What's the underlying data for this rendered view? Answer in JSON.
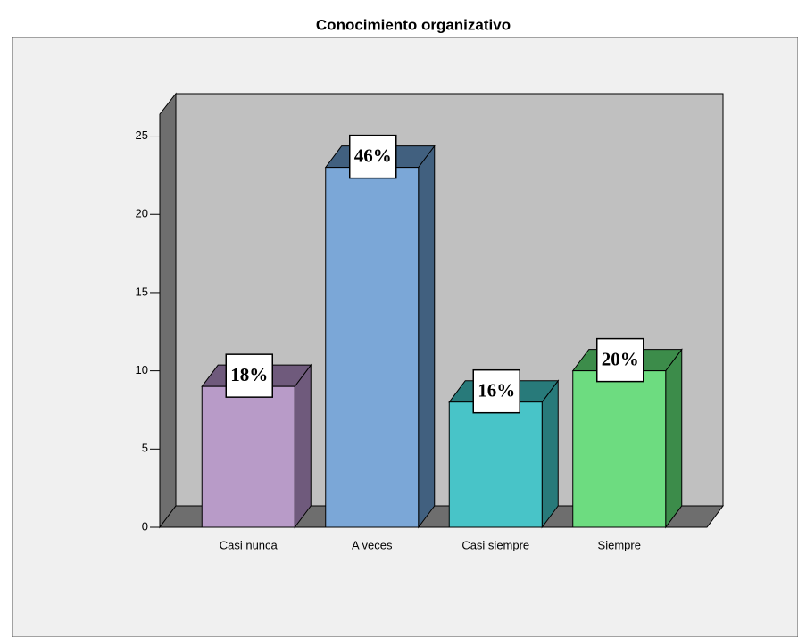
{
  "chart_data": {
    "type": "bar3d",
    "title": "Conocimiento organizativo",
    "categories": [
      "Casi nunca",
      "A veces",
      "Casi siempre",
      "Siempre"
    ],
    "values": [
      9,
      23,
      8,
      10
    ],
    "data_labels": [
      "18%",
      "46%",
      "16%",
      "20%"
    ],
    "colors": [
      "#b89bc8",
      "#7ba7d7",
      "#48c4c8",
      "#6ddc80"
    ],
    "shade_colors": [
      "#6f5a7c",
      "#41607f",
      "#287a7a",
      "#3c8c4a"
    ],
    "ylim": [
      0,
      26.4
    ],
    "yticks": [
      0,
      5,
      10,
      15,
      20,
      25
    ]
  }
}
